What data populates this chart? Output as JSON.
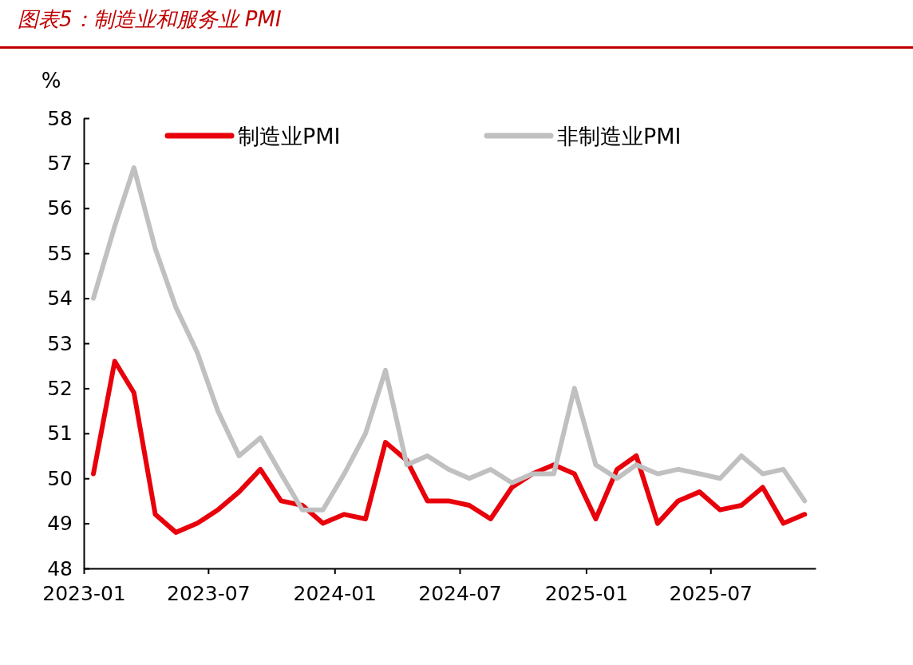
{
  "chart_data": {
    "type": "line",
    "title": "图表5：制造业和服务业 PMI",
    "ylabel": "%",
    "x": [
      "2023-01-15",
      "2023-02-15",
      "2023-03-15",
      "2023-04-15",
      "2023-05-15",
      "2023-06-15",
      "2023-07-15",
      "2023-08-15",
      "2023-09-15",
      "2023-10-15",
      "2023-11-15",
      "2023-12-15",
      "2024-01-15",
      "2024-02-15",
      "2024-03-15",
      "2024-04-15",
      "2024-05-15",
      "2024-06-15",
      "2024-07-15",
      "2024-08-15",
      "2024-09-15",
      "2024-10-15",
      "2024-11-15",
      "2024-12-15",
      "2025-01-15",
      "2025-02-15",
      "2025-03-15",
      "2025-04-15",
      "2025-05-15",
      "2025-06-15",
      "2025-07-15",
      "2025-08-15",
      "2025-09-15",
      "2025-10-15",
      "2025-11-15"
    ],
    "series": [
      {
        "name": "制造业PMI",
        "color": "#e8000b",
        "values": [
          50.1,
          52.6,
          51.9,
          49.2,
          48.8,
          49.0,
          49.3,
          49.7,
          50.2,
          49.5,
          49.4,
          49.0,
          49.2,
          49.1,
          50.8,
          50.4,
          49.5,
          49.5,
          49.4,
          49.1,
          49.8,
          50.1,
          50.3,
          50.1,
          49.1,
          50.2,
          50.5,
          49.0,
          49.5,
          49.7,
          49.3,
          49.4,
          49.8,
          49.0,
          49.2
        ]
      },
      {
        "name": "非制造业PMI",
        "color": "#c0c0c0",
        "values": [
          54.0,
          55.6,
          56.9,
          55.1,
          53.8,
          52.8,
          51.5,
          50.5,
          50.9,
          50.1,
          49.3,
          49.3,
          50.1,
          51.0,
          52.4,
          50.3,
          50.5,
          50.2,
          50.0,
          50.2,
          49.9,
          50.1,
          50.1,
          52.0,
          50.3,
          50.0,
          50.3,
          50.1,
          50.2,
          50.1,
          50.0,
          50.5,
          50.1,
          50.2,
          49.5
        ]
      }
    ],
    "xlim": [
      "2023-01-01",
      "2025-12-01"
    ],
    "xticks": [
      {
        "value": "2023-01-01",
        "label": "2023-01"
      },
      {
        "value": "2023-07-01",
        "label": "2023-07"
      },
      {
        "value": "2024-01-01",
        "label": "2024-01"
      },
      {
        "value": "2024-07-01",
        "label": "2024-07"
      },
      {
        "value": "2025-01-01",
        "label": "2025-01"
      },
      {
        "value": "2025-07-01",
        "label": "2025-07"
      }
    ],
    "ylim": [
      48,
      58
    ],
    "yticks": [
      48,
      49,
      50,
      51,
      52,
      53,
      54,
      55,
      56,
      57,
      58
    ],
    "legend": "top",
    "grid": false,
    "marker": "none",
    "line_style": "solid"
  }
}
